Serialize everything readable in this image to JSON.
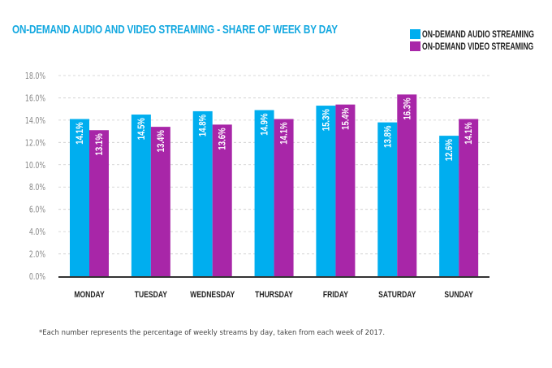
{
  "chart_data": {
    "type": "bar",
    "title": "ON-DEMAND AUDIO AND VIDEO STREAMING - SHARE OF WEEK BY DAY",
    "categories": [
      "MONDAY",
      "TUESDAY",
      "WEDNESDAY",
      "THURSDAY",
      "FRIDAY",
      "SATURDAY",
      "SUNDAY"
    ],
    "series": [
      {
        "name": "ON-DEMAND AUDIO STREAMING",
        "color": "#00aeef",
        "values": [
          14.1,
          14.5,
          14.8,
          14.9,
          15.3,
          13.8,
          12.6
        ],
        "labels": [
          "14.1%",
          "14.5%",
          "14.8%",
          "14.9%",
          "15.3%",
          "13.8%",
          "12.6%"
        ]
      },
      {
        "name": "ON-DEMAND VIDEO STREAMING",
        "color": "#a826a8",
        "values": [
          13.1,
          13.4,
          13.6,
          14.1,
          15.4,
          16.3,
          14.1
        ],
        "labels": [
          "13.1%",
          "13.4%",
          "13.6%",
          "14.1%",
          "15.4%",
          "16.3%",
          "14.1%"
        ]
      }
    ],
    "ylim": [
      0,
      18
    ],
    "yticks": [
      0,
      2,
      4,
      6,
      8,
      10,
      12,
      14,
      16,
      18
    ],
    "ytick_labels": [
      "0.0%",
      "2.0%",
      "4.0%",
      "6.0%",
      "8.0%",
      "10.0%",
      "12.0%",
      "14.0%",
      "16.0%",
      "18.0%"
    ],
    "xlabel": "",
    "ylabel": "",
    "grid": true,
    "legend_position": "top-right"
  },
  "footnote": "*Each number represents the percentage of weekly streams by day, taken from each week of 2017.",
  "colors": {
    "title": "#13a8e0",
    "axis": "#333333",
    "grid": "#cccccc"
  }
}
